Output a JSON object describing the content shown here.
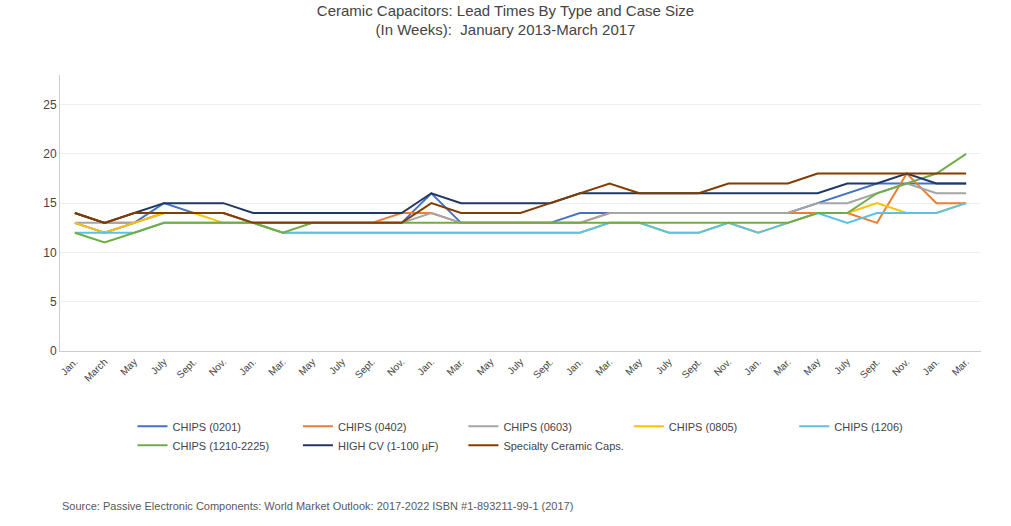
{
  "chart_data": {
    "type": "line",
    "title": "Ceramic Capacitors: Lead Times By Type and Case Size",
    "subtitle": "(In Weeks):  January 2013-March 2017",
    "annotations": [
      "Source: Passive Electronic Components: World Market Outlook: 2017-2022 ISBN #1-893211-99-1 (2017)"
    ],
    "categories": [
      "Jan.",
      "March",
      "May",
      "July",
      "Sept.",
      "Nov.",
      "Jan.",
      "Mar.",
      "May",
      "July",
      "Sept.",
      "Nov.",
      "Jan.",
      "Mar.",
      "May",
      "July",
      "Sept.",
      "Jan.",
      "Mar.",
      "May",
      "July",
      "Sept.",
      "Nov.",
      "Jan.",
      "Mar.",
      "May",
      "July",
      "Sept.",
      "Nov.",
      "Jan.",
      "Mar."
    ],
    "series": [
      {
        "name": "CHIPS (0201)",
        "color": "#4472C4",
        "values": [
          13,
          12,
          13,
          15,
          14,
          14,
          13,
          13,
          13,
          13,
          13,
          13,
          16,
          13,
          13,
          13,
          13,
          14,
          14,
          14,
          14,
          14,
          14,
          14,
          14,
          15,
          16,
          17,
          17,
          17,
          17
        ]
      },
      {
        "name": "CHIPS (0402)",
        "color": "#ED7D31",
        "values": [
          14,
          13,
          13,
          14,
          14,
          14,
          13,
          13,
          13,
          13,
          13,
          14,
          14,
          13,
          13,
          13,
          13,
          13,
          14,
          14,
          14,
          14,
          14,
          14,
          14,
          14,
          14,
          13,
          18,
          15,
          15
        ]
      },
      {
        "name": "CHIPS (0603)",
        "color": "#A5A5A5",
        "values": [
          13,
          13,
          13,
          14,
          14,
          14,
          13,
          13,
          13,
          13,
          13,
          13,
          14,
          13,
          13,
          13,
          13,
          13,
          14,
          14,
          14,
          14,
          14,
          14,
          14,
          15,
          15,
          16,
          17,
          16,
          16
        ]
      },
      {
        "name": "CHIPS (0805)",
        "color": "#FFC000",
        "values": [
          13,
          12,
          13,
          14,
          14,
          13,
          13,
          12,
          12,
          12,
          12,
          12,
          12,
          12,
          12,
          12,
          12,
          12,
          13,
          13,
          12,
          12,
          13,
          12,
          13,
          14,
          14,
          15,
          14,
          14,
          15
        ]
      },
      {
        "name": "CHIPS (1206)",
        "color": "#5BC2E7",
        "values": [
          12,
          12,
          12,
          13,
          13,
          13,
          13,
          12,
          12,
          12,
          12,
          12,
          12,
          12,
          12,
          12,
          12,
          12,
          13,
          13,
          12,
          12,
          13,
          12,
          13,
          14,
          13,
          14,
          14,
          14,
          15
        ]
      },
      {
        "name": "CHIPS (1210-2225)",
        "color": "#70AD47",
        "values": [
          12,
          11,
          12,
          13,
          13,
          13,
          13,
          12,
          13,
          13,
          13,
          13,
          13,
          13,
          13,
          13,
          13,
          13,
          13,
          13,
          13,
          13,
          13,
          13,
          13,
          14,
          14,
          16,
          17,
          18,
          20
        ]
      },
      {
        "name": "HIGH CV (1-100 µF)",
        "color": "#1F3864",
        "values": [
          14,
          13,
          14,
          15,
          15,
          15,
          14,
          14,
          14,
          14,
          14,
          14,
          16,
          15,
          15,
          15,
          15,
          16,
          16,
          16,
          16,
          16,
          16,
          16,
          16,
          16,
          17,
          17,
          18,
          17,
          17
        ]
      },
      {
        "name": "Specialty Ceramic Caps.",
        "color": "#833C00",
        "values": [
          14,
          13,
          14,
          14,
          14,
          14,
          13,
          13,
          13,
          13,
          13,
          13,
          15,
          14,
          14,
          14,
          15,
          16,
          17,
          16,
          16,
          16,
          17,
          17,
          17,
          18,
          18,
          18,
          18,
          18,
          18
        ]
      }
    ],
    "ylim": [
      0,
      28
    ],
    "yticks": [
      0,
      5,
      10,
      15,
      20,
      25
    ],
    "grid": true,
    "legend": "bottom"
  }
}
